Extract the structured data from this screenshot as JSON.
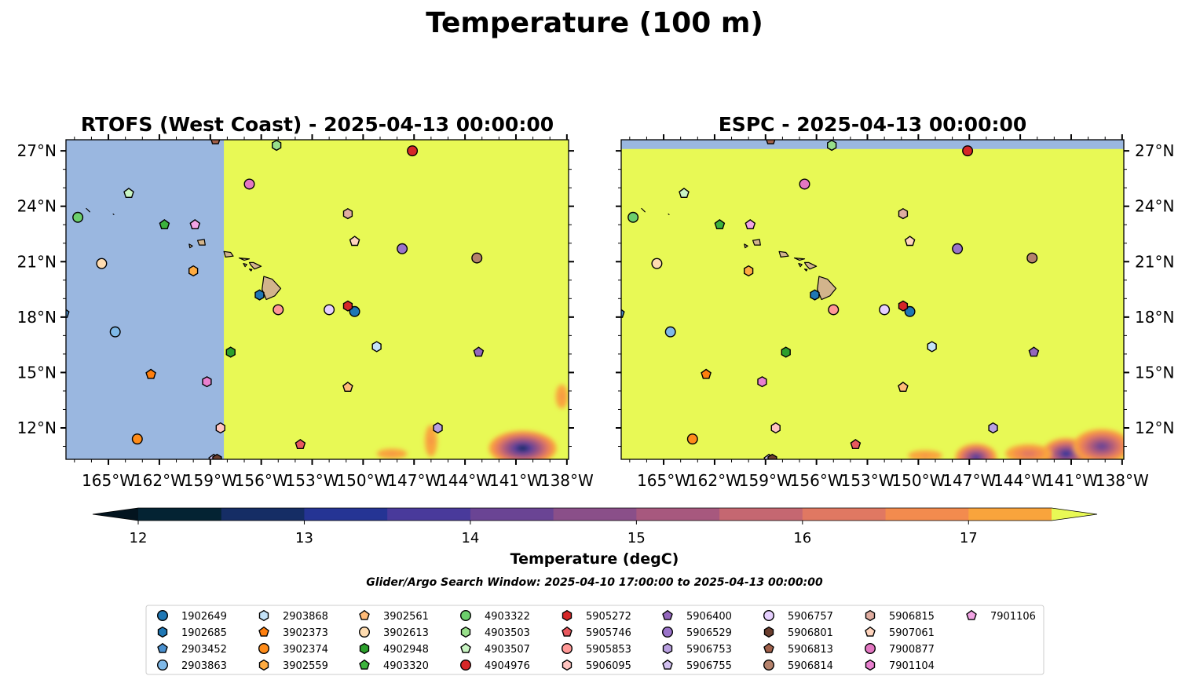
{
  "title": "Temperature (100 m)",
  "footnote": "Glider/Argo Search Window: 2025-04-10 17:00:00 to 2025-04-13 00:00:00",
  "colors": {
    "land": "#d2b48c",
    "masked_ocean": "#9ab7e0",
    "warm_field": "#e8f955",
    "marker_edge": "#000000"
  },
  "chart_data": [
    {
      "type": "heatmap",
      "title": "RTOFS (West Coast) - 2025-04-13 00:00:00",
      "projection": "PlateCarree",
      "xlim": [
        -167.5,
        -137.9
      ],
      "ylim": [
        10.3,
        27.6
      ],
      "xticks": [
        -165,
        -162,
        -159,
        -156,
        -153,
        -150,
        -147,
        -144,
        -141,
        -138
      ],
      "xtick_labels": [
        "165°W",
        "162°W",
        "159°W",
        "156°W",
        "153°W",
        "150°W",
        "147°W",
        "144°W",
        "141°W",
        "138°W"
      ],
      "yticks": [
        12,
        15,
        18,
        21,
        24,
        27
      ],
      "ytick_labels": [
        "12°N",
        "15°N",
        "18°N",
        "21°N",
        "24°N",
        "27°N"
      ],
      "ytick_side": "left",
      "grid": false,
      "domain_edge_lon": -158.2,
      "field_description": "Outside model domain west of 158.2°W; > 17.5 degC over nearly all of the domain; cooler (12.5–17 degC) patches south of 12.5°N, coldest near 140°W, 11°N",
      "cool_patches": [
        {
          "lon": -140.6,
          "lat": 10.9,
          "lon_radius": 2.1,
          "lat_radius": 1.0,
          "min_temp": 12.6
        },
        {
          "lon": -138.3,
          "lat": 13.7,
          "lon_radius": 0.5,
          "lat_radius": 0.9,
          "min_temp": 16.6
        },
        {
          "lon": -146.0,
          "lat": 11.3,
          "lon_radius": 0.5,
          "lat_radius": 1.2,
          "min_temp": 16.6
        },
        {
          "lon": -148.3,
          "lat": 10.6,
          "lon_radius": 1.3,
          "lat_radius": 0.4,
          "min_temp": 16.7
        }
      ]
    },
    {
      "type": "heatmap",
      "title": "ESPC - 2025-04-13 00:00:00",
      "projection": "PlateCarree",
      "xlim": [
        -167.5,
        -137.9
      ],
      "ylim": [
        10.3,
        27.6
      ],
      "xticks": [
        -165,
        -162,
        -159,
        -156,
        -153,
        -150,
        -147,
        -144,
        -141,
        -138
      ],
      "xtick_labels": [
        "165°W",
        "162°W",
        "159°W",
        "156°W",
        "153°W",
        "150°W",
        "147°W",
        "144°W",
        "141°W",
        "138°W"
      ],
      "yticks": [
        12,
        15,
        18,
        21,
        24,
        27
      ],
      "ytick_labels": [
        "12°N",
        "15°N",
        "18°N",
        "21°N",
        "24°N",
        "27°N"
      ],
      "ytick_side": "right",
      "grid": false,
      "domain_edge_lat": 27.1,
      "field_description": "Outside model domain north of 27.1°N; > 17.5 degC over most of the domain; cooler (12.5–17 degC) band along the southern edge east of 148°W",
      "cool_patches": [
        {
          "lon": -146.6,
          "lat": 10.4,
          "lon_radius": 1.3,
          "lat_radius": 0.8,
          "min_temp": 13.4
        },
        {
          "lon": -141.3,
          "lat": 10.6,
          "lon_radius": 1.5,
          "lat_radius": 0.9,
          "min_temp": 13.1
        },
        {
          "lon": -139.2,
          "lat": 11.0,
          "lon_radius": 1.8,
          "lat_radius": 1.0,
          "min_temp": 13.8
        },
        {
          "lon": -143.5,
          "lat": 10.6,
          "lon_radius": 1.6,
          "lat_radius": 0.6,
          "min_temp": 15.8
        },
        {
          "lon": -149.6,
          "lat": 10.5,
          "lon_radius": 1.4,
          "lat_radius": 0.4,
          "min_temp": 16.6
        }
      ]
    }
  ],
  "colorbar": {
    "label": "Temperature (degC)",
    "range": [
      12,
      17.5
    ],
    "extend": "both",
    "ticks": [
      "12",
      "13",
      "14",
      "15",
      "16",
      "17"
    ],
    "boundaries": [
      12,
      12.5,
      13,
      13.5,
      14,
      14.5,
      15,
      15.5,
      16,
      16.5,
      17,
      17.5
    ],
    "colors": [
      "#042333",
      "#152d65",
      "#253494",
      "#493a9b",
      "#6a4494",
      "#8a4f89",
      "#a7587e",
      "#c56771",
      "#e07862",
      "#f38b4e",
      "#f9a43c",
      "#f7c744"
    ],
    "under_color": "#03141f",
    "over_color": "#e8f955"
  },
  "coastlines": [
    {
      "name": "Hawaii",
      "points": [
        [
          -155.85,
          20.2
        ],
        [
          -155.35,
          20.05
        ],
        [
          -154.85,
          19.55
        ],
        [
          -155.2,
          19.15
        ],
        [
          -155.7,
          18.95
        ],
        [
          -155.95,
          19.5
        ]
      ]
    },
    {
      "name": "Maui",
      "points": [
        [
          -156.7,
          20.95
        ],
        [
          -156.45,
          20.95
        ],
        [
          -156.0,
          20.75
        ],
        [
          -156.4,
          20.6
        ],
        [
          -156.6,
          20.8
        ]
      ]
    },
    {
      "name": "Kahoolawe",
      "points": [
        [
          -156.7,
          20.6
        ],
        [
          -156.55,
          20.58
        ],
        [
          -156.6,
          20.5
        ]
      ]
    },
    {
      "name": "Lanai",
      "points": [
        [
          -157.05,
          20.9
        ],
        [
          -156.85,
          20.85
        ],
        [
          -156.95,
          20.73
        ]
      ]
    },
    {
      "name": "Molokai",
      "points": [
        [
          -157.3,
          21.2
        ],
        [
          -156.7,
          21.15
        ],
        [
          -157.0,
          21.08
        ]
      ]
    },
    {
      "name": "Oahu",
      "points": [
        [
          -158.2,
          21.55
        ],
        [
          -157.8,
          21.5
        ],
        [
          -157.65,
          21.3
        ],
        [
          -158.1,
          21.25
        ]
      ]
    },
    {
      "name": "Kauai",
      "points": [
        [
          -159.75,
          22.15
        ],
        [
          -159.35,
          22.2
        ],
        [
          -159.3,
          21.9
        ],
        [
          -159.65,
          21.9
        ]
      ]
    },
    {
      "name": "Niihau",
      "points": [
        [
          -160.25,
          21.95
        ],
        [
          -160.05,
          21.85
        ],
        [
          -160.2,
          21.75
        ]
      ]
    },
    {
      "name": "Nihoa",
      "points": [
        [
          -161.95,
          23.08
        ],
        [
          -161.85,
          23.05
        ]
      ]
    },
    {
      "name": "Necker",
      "points": [
        [
          -164.72,
          23.58
        ],
        [
          -164.68,
          23.55
        ]
      ]
    },
    {
      "name": "French Frigate Shoals",
      "points": [
        [
          -166.3,
          23.88
        ],
        [
          -166.1,
          23.7
        ]
      ]
    }
  ],
  "platforms": [
    {
      "id": "1902649",
      "marker": "circle",
      "color": "#1f77b4",
      "lon": -150.5,
      "lat": 18.3
    },
    {
      "id": "1902685",
      "marker": "hexagon",
      "color": "#1f77b4",
      "lon": -156.1,
      "lat": 19.2
    },
    {
      "id": "2903452",
      "marker": "pentagon",
      "color": "#4a90cf",
      "lon": -167.6,
      "lat": 18.2
    },
    {
      "id": "2903863",
      "marker": "circle",
      "color": "#7fb9e8",
      "lon": -164.6,
      "lat": 17.2
    },
    {
      "id": "2903868",
      "marker": "hexagon",
      "color": "#c4e2f7",
      "lon": -149.2,
      "lat": 16.4
    },
    {
      "id": "3902373",
      "marker": "pentagon",
      "color": "#ff7f0e",
      "lon": -162.5,
      "lat": 14.9
    },
    {
      "id": "3902374",
      "marker": "circle",
      "color": "#ff8c1a",
      "lon": -163.3,
      "lat": 11.4
    },
    {
      "id": "3902559",
      "marker": "hexagon",
      "color": "#ffab40",
      "lon": -160.0,
      "lat": 20.5
    },
    {
      "id": "3902561",
      "marker": "pentagon",
      "color": "#ffbb78",
      "lon": -150.9,
      "lat": 14.2
    },
    {
      "id": "3902613",
      "marker": "circle",
      "color": "#ffdcb0",
      "lon": -165.4,
      "lat": 20.9
    },
    {
      "id": "4902948",
      "marker": "hexagon",
      "color": "#2ca02c",
      "lon": -157.8,
      "lat": 16.1
    },
    {
      "id": "4903320",
      "marker": "pentagon",
      "color": "#3cb33c",
      "lon": -161.7,
      "lat": 23.0
    },
    {
      "id": "4903322",
      "marker": "circle",
      "color": "#6ccf6c",
      "lon": -166.8,
      "lat": 23.4
    },
    {
      "id": "4903503",
      "marker": "hexagon",
      "color": "#98df8a",
      "lon": -155.1,
      "lat": 27.3
    },
    {
      "id": "4903507",
      "marker": "pentagon",
      "color": "#c9f5c3",
      "lon": -163.8,
      "lat": 24.7
    },
    {
      "id": "4904976",
      "marker": "circle",
      "color": "#d62728",
      "lon": -147.1,
      "lat": 27.0
    },
    {
      "id": "5905272",
      "marker": "hexagon",
      "color": "#d62728",
      "lon": -150.9,
      "lat": 18.6
    },
    {
      "id": "5905746",
      "marker": "pentagon",
      "color": "#e8585e",
      "lon": -153.7,
      "lat": 11.1
    },
    {
      "id": "5905853",
      "marker": "circle",
      "color": "#ff9896",
      "lon": -155.0,
      "lat": 18.4
    },
    {
      "id": "5906095",
      "marker": "hexagon",
      "color": "#ffc4c0",
      "lon": -158.4,
      "lat": 12.0
    },
    {
      "id": "5906400",
      "marker": "pentagon",
      "color": "#9467bd",
      "lon": -143.2,
      "lat": 16.1
    },
    {
      "id": "5906529",
      "marker": "circle",
      "color": "#9a73c9",
      "lon": -147.7,
      "lat": 21.7
    },
    {
      "id": "5906753",
      "marker": "hexagon",
      "color": "#b9a0e0",
      "lon": -145.6,
      "lat": 12.0
    },
    {
      "id": "5906755",
      "marker": "pentagon",
      "color": "#d2c0f0",
      "lon": -158.8,
      "lat": 10.3
    },
    {
      "id": "5906757",
      "marker": "circle",
      "color": "#e6d0ff",
      "lon": -152.0,
      "lat": 18.4
    },
    {
      "id": "5906801",
      "marker": "hexagon",
      "color": "#6b3e2e",
      "lon": -158.6,
      "lat": 10.3
    },
    {
      "id": "5906813",
      "marker": "pentagon",
      "color": "#a0604a",
      "lon": -158.7,
      "lat": 27.6
    },
    {
      "id": "5906814",
      "marker": "circle",
      "color": "#b5826c",
      "lon": -143.3,
      "lat": 21.2
    },
    {
      "id": "5906815",
      "marker": "hexagon",
      "color": "#e0ada0",
      "lon": -150.9,
      "lat": 23.6
    },
    {
      "id": "5907061",
      "marker": "pentagon",
      "color": "#ffd4bd",
      "lon": -150.5,
      "lat": 22.1
    },
    {
      "id": "7900877",
      "marker": "circle",
      "color": "#e377c2",
      "lon": -156.7,
      "lat": 25.2
    },
    {
      "id": "7901104",
      "marker": "hexagon",
      "color": "#e980cf",
      "lon": -159.2,
      "lat": 14.5
    },
    {
      "id": "7901106",
      "marker": "pentagon",
      "color": "#f2a4e4",
      "lon": -159.9,
      "lat": 23.0
    }
  ]
}
